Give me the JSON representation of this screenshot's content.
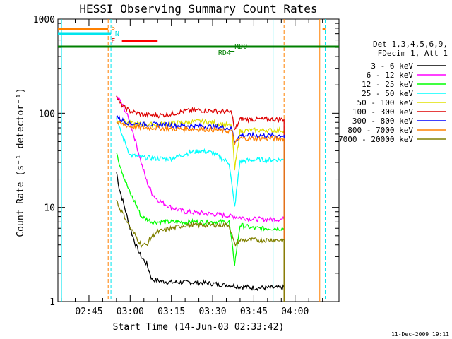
{
  "chart_data": {
    "type": "line",
    "title": "HESSI Observing Summary Count Rates",
    "xlabel": "Start Time (14-Jun-03 02:33:42)",
    "ylabel": "Count Rate (s⁻¹ detector⁻¹)",
    "x_tick_labels": [
      "02:45",
      "03:00",
      "03:15",
      "03:30",
      "03:45",
      "04:00"
    ],
    "y_tick_labels": [
      "1",
      "10",
      "100",
      "1000"
    ],
    "y_scale": "log",
    "ylim": [
      1,
      1000
    ],
    "xlim": [
      "02:33:42",
      "04:16:00"
    ],
    "grid": false,
    "legend_position": "right",
    "legend_header": [
      "Det 1,3,4,5,6,9,",
      "FDecim 1, Att 1"
    ],
    "series": [
      {
        "name": "3 - 6 keV",
        "color": "#000000",
        "points": [
          [
            "02:55",
            24
          ],
          [
            "02:56",
            16
          ],
          [
            "02:58",
            10
          ],
          [
            "03:00",
            6
          ],
          [
            "03:02",
            4
          ],
          [
            "03:04",
            3
          ],
          [
            "03:06",
            2.5
          ],
          [
            "03:08",
            1.7
          ],
          [
            "03:15",
            1.6
          ],
          [
            "03:25",
            1.6
          ],
          [
            "03:35",
            1.5
          ],
          [
            "03:45",
            1.4
          ],
          [
            "03:50",
            1.4
          ],
          [
            "03:56",
            1.4
          ]
        ]
      },
      {
        "name": "6 - 12 keV",
        "color": "#ff00ff",
        "points": [
          [
            "02:55",
            150
          ],
          [
            "02:56",
            140
          ],
          [
            "02:58",
            110
          ],
          [
            "03:00",
            80
          ],
          [
            "03:02",
            50
          ],
          [
            "03:04",
            30
          ],
          [
            "03:06",
            19
          ],
          [
            "03:08",
            14
          ],
          [
            "03:10",
            12
          ],
          [
            "03:15",
            10
          ],
          [
            "03:20",
            9
          ],
          [
            "03:30",
            8.5
          ],
          [
            "03:38",
            8
          ],
          [
            "03:45",
            7.5
          ],
          [
            "03:50",
            7.5
          ],
          [
            "03:56",
            7.5
          ]
        ]
      },
      {
        "name": "12 - 25 keV",
        "color": "#00ff00",
        "points": [
          [
            "02:55",
            40
          ],
          [
            "02:56",
            30
          ],
          [
            "02:58",
            20
          ],
          [
            "03:00",
            14
          ],
          [
            "03:02",
            11
          ],
          [
            "03:04",
            8
          ],
          [
            "03:06",
            7.5
          ],
          [
            "03:08",
            7
          ],
          [
            "03:15",
            7
          ],
          [
            "03:25",
            7
          ],
          [
            "03:36",
            7
          ],
          [
            "03:38",
            2.5
          ],
          [
            "03:40",
            6.5
          ],
          [
            "03:45",
            6
          ],
          [
            "03:50",
            6
          ],
          [
            "03:56",
            6
          ]
        ]
      },
      {
        "name": "25 - 50 keV",
        "color": "#00ffff",
        "points": [
          [
            "02:55",
            90
          ],
          [
            "02:56",
            70
          ],
          [
            "02:58",
            50
          ],
          [
            "03:00",
            36
          ],
          [
            "03:04",
            34
          ],
          [
            "03:10",
            33
          ],
          [
            "03:15",
            33
          ],
          [
            "03:20",
            37
          ],
          [
            "03:25",
            40
          ],
          [
            "03:30",
            38
          ],
          [
            "03:34",
            32
          ],
          [
            "03:36",
            30
          ],
          [
            "03:38",
            10
          ],
          [
            "03:40",
            31
          ],
          [
            "03:45",
            32
          ],
          [
            "03:50",
            32
          ],
          [
            "03:56",
            32
          ]
        ]
      },
      {
        "name": "50 - 100 keV",
        "color": "#e0e000",
        "points": [
          [
            "02:55",
            85
          ],
          [
            "02:56",
            82
          ],
          [
            "02:58",
            80
          ],
          [
            "03:00",
            78
          ],
          [
            "03:05",
            76
          ],
          [
            "03:10",
            76
          ],
          [
            "03:15",
            78
          ],
          [
            "03:20",
            80
          ],
          [
            "03:25",
            82
          ],
          [
            "03:30",
            80
          ],
          [
            "03:35",
            75
          ],
          [
            "03:37",
            72
          ],
          [
            "03:38",
            25
          ],
          [
            "03:40",
            65
          ],
          [
            "03:45",
            66
          ],
          [
            "03:50",
            66
          ],
          [
            "03:56",
            66
          ]
        ]
      },
      {
        "name": "100 - 300 keV",
        "color": "#dd0000",
        "points": [
          [
            "02:55",
            150
          ],
          [
            "02:56",
            130
          ],
          [
            "02:58",
            115
          ],
          [
            "03:00",
            105
          ],
          [
            "03:05",
            96
          ],
          [
            "03:10",
            95
          ],
          [
            "03:15",
            98
          ],
          [
            "03:20",
            106
          ],
          [
            "03:25",
            108
          ],
          [
            "03:30",
            106
          ],
          [
            "03:35",
            104
          ],
          [
            "03:37",
            102
          ],
          [
            "03:38",
            65
          ],
          [
            "03:40",
            86
          ],
          [
            "03:45",
            86
          ],
          [
            "03:50",
            86
          ],
          [
            "03:56",
            86
          ]
        ]
      },
      {
        "name": "300 - 800 keV",
        "color": "#0000ff",
        "points": [
          [
            "02:55",
            95
          ],
          [
            "02:56",
            88
          ],
          [
            "02:58",
            82
          ],
          [
            "03:00",
            78
          ],
          [
            "03:05",
            76
          ],
          [
            "03:10",
            76
          ],
          [
            "03:15",
            75
          ],
          [
            "03:20",
            74
          ],
          [
            "03:25",
            73
          ],
          [
            "03:30",
            72
          ],
          [
            "03:35",
            70
          ],
          [
            "03:37",
            68
          ],
          [
            "03:38",
            50
          ],
          [
            "03:40",
            58
          ],
          [
            "03:45",
            58
          ],
          [
            "03:50",
            58
          ],
          [
            "03:56",
            58
          ]
        ]
      },
      {
        "name": "800 - 7000 keV",
        "color": "#ff8000",
        "points": [
          [
            "02:55",
            80
          ],
          [
            "02:56",
            78
          ],
          [
            "02:58",
            75
          ],
          [
            "03:00",
            72
          ],
          [
            "03:05",
            70
          ],
          [
            "03:10",
            70
          ],
          [
            "03:15",
            68
          ],
          [
            "03:20",
            68
          ],
          [
            "03:25",
            68
          ],
          [
            "03:30",
            67
          ],
          [
            "03:35",
            65
          ],
          [
            "03:37",
            64
          ],
          [
            "03:38",
            48
          ],
          [
            "03:40",
            54
          ],
          [
            "03:45",
            54
          ],
          [
            "03:50",
            54
          ],
          [
            "03:56",
            54
          ]
        ]
      },
      {
        "name": "7000 - 20000 keV",
        "color": "#808000",
        "points": [
          [
            "02:55",
            12
          ],
          [
            "02:56",
            10
          ],
          [
            "02:58",
            8
          ],
          [
            "03:00",
            6
          ],
          [
            "03:02",
            5
          ],
          [
            "03:04",
            4
          ],
          [
            "03:06",
            4
          ],
          [
            "03:08",
            5
          ],
          [
            "03:10",
            5.5
          ],
          [
            "03:15",
            6
          ],
          [
            "03:20",
            6.5
          ],
          [
            "03:25",
            6.5
          ],
          [
            "03:30",
            6.5
          ],
          [
            "03:36",
            6.5
          ],
          [
            "03:38",
            4
          ],
          [
            "03:40",
            4.5
          ],
          [
            "03:45",
            4.5
          ],
          [
            "03:50",
            4.5
          ],
          [
            "03:56",
            4.5
          ]
        ]
      }
    ],
    "flag_labels": [
      {
        "text": "S",
        "color": "#ff8000"
      },
      {
        "text": "N",
        "color": "#00dddd"
      },
      {
        "text": "F",
        "color": "#dd0000"
      },
      {
        "text": "RD0",
        "color": "#008000"
      },
      {
        "text": "RD4",
        "color": "#008000"
      }
    ],
    "footer_date": "11-Dec-2009 19:11"
  }
}
